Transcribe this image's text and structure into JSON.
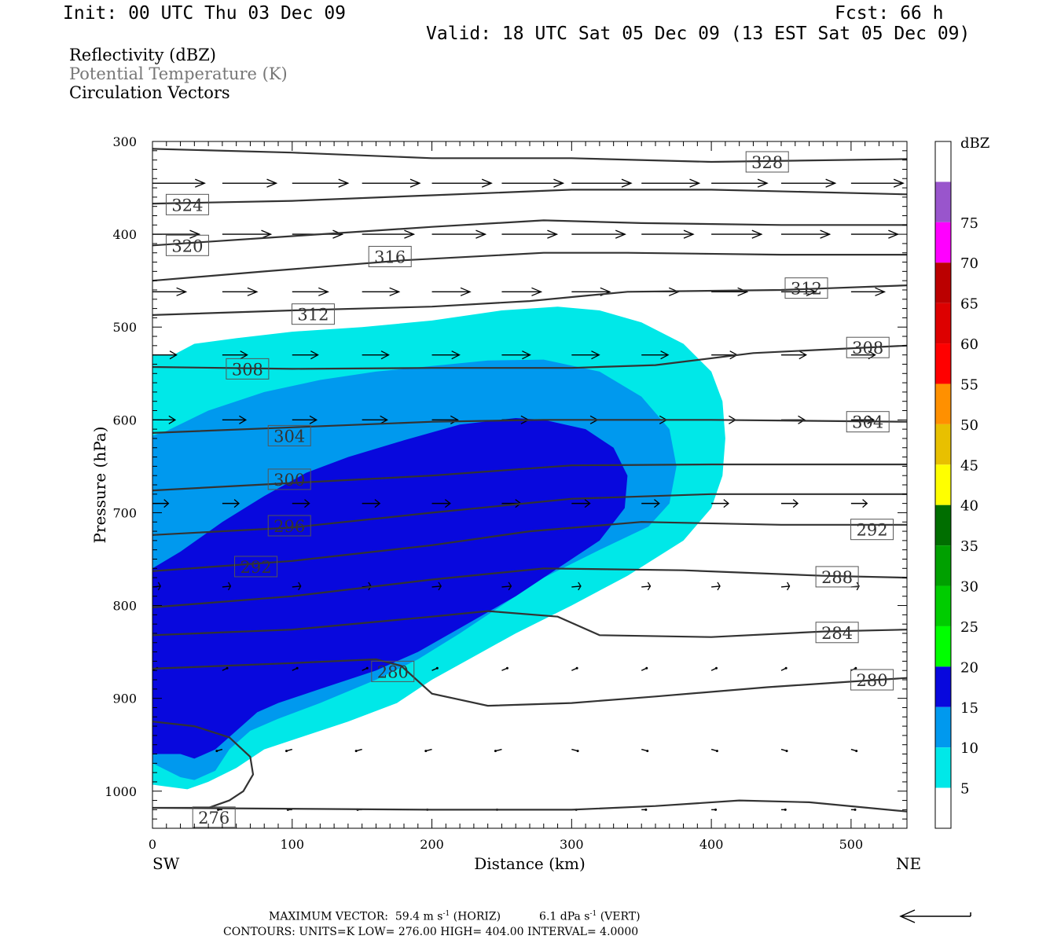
{
  "header": {
    "init": "Init: 00 UTC Thu 03 Dec 09",
    "fcst": "Fcst:   66 h",
    "valid": "Valid: 18 UTC Sat 05 Dec 09 (13 EST Sat 05 Dec 09)"
  },
  "fields": [
    "Reflectivity (dBZ)",
    "Potential Temperature (K)",
    "Circulation Vectors"
  ],
  "footer": {
    "max_vector_label": "MAXIMUM VECTOR:",
    "max_vector_horiz": "59.4 m s",
    "horiz_suffix": " (HORIZ)",
    "max_vector_vert": "6.1 dPa s",
    "vert_suffix": " (VERT)",
    "exponent": "-1",
    "contours": "CONTOURS:  UNITS=K   LOW=  276.00        HIGH=  404.00        INTERVAL=    4.0000"
  },
  "colors": {
    "dbz_5": "#00e8e8",
    "dbz_10": "#0099ee",
    "dbz_15": "#0808dd",
    "contour": "#333333"
  },
  "chart_data": {
    "type": "heatmap",
    "xlabel": "Distance (km)",
    "ylabel": "Pressure (hPa)",
    "xlim": [
      0,
      540
    ],
    "ylim": [
      1040,
      300
    ],
    "x_ticks": [
      0,
      100,
      200,
      300,
      400,
      500
    ],
    "y_ticks": [
      300,
      400,
      500,
      600,
      700,
      800,
      900,
      1000
    ],
    "x_end_labels": {
      "left": "SW",
      "right": "NE"
    },
    "colorbar": {
      "title": "dBZ",
      "levels": [
        5,
        10,
        15,
        20,
        25,
        30,
        35,
        40,
        45,
        50,
        55,
        60,
        65,
        70,
        75
      ],
      "colors": [
        "#ffffff",
        "#00e8e8",
        "#0099ee",
        "#0808dd",
        "#00ff00",
        "#00cc00",
        "#00a000",
        "#006e00",
        "#ffff00",
        "#e8c000",
        "#ff9000",
        "#ff0000",
        "#dd0000",
        "#bb0000",
        "#ff00ff",
        "#9955cc",
        "#ffffff"
      ]
    },
    "reflectivity": [
      {
        "dbz": 5,
        "polygon": [
          [
            0,
            530
          ],
          [
            15,
            530
          ],
          [
            30,
            518
          ],
          [
            60,
            512
          ],
          [
            100,
            505
          ],
          [
            150,
            500
          ],
          [
            200,
            493
          ],
          [
            250,
            482
          ],
          [
            290,
            478
          ],
          [
            320,
            482
          ],
          [
            350,
            495
          ],
          [
            380,
            518
          ],
          [
            400,
            548
          ],
          [
            408,
            580
          ],
          [
            410,
            620
          ],
          [
            408,
            660
          ],
          [
            400,
            695
          ],
          [
            380,
            730
          ],
          [
            340,
            768
          ],
          [
            300,
            800
          ],
          [
            260,
            830
          ],
          [
            230,
            855
          ],
          [
            200,
            880
          ],
          [
            175,
            905
          ],
          [
            140,
            925
          ],
          [
            110,
            940
          ],
          [
            80,
            955
          ],
          [
            60,
            975
          ],
          [
            40,
            990
          ],
          [
            25,
            998
          ],
          [
            10,
            995
          ],
          [
            0,
            993
          ]
        ]
      },
      {
        "dbz": 10,
        "polygon": [
          [
            0,
            617
          ],
          [
            10,
            612
          ],
          [
            40,
            590
          ],
          [
            80,
            570
          ],
          [
            120,
            557
          ],
          [
            160,
            548
          ],
          [
            200,
            542
          ],
          [
            240,
            536
          ],
          [
            280,
            535
          ],
          [
            320,
            548
          ],
          [
            350,
            575
          ],
          [
            370,
            610
          ],
          [
            375,
            650
          ],
          [
            370,
            690
          ],
          [
            355,
            715
          ],
          [
            320,
            740
          ],
          [
            280,
            770
          ],
          [
            250,
            800
          ],
          [
            220,
            830
          ],
          [
            190,
            858
          ],
          [
            160,
            880
          ],
          [
            120,
            905
          ],
          [
            90,
            922
          ],
          [
            70,
            935
          ],
          [
            55,
            955
          ],
          [
            45,
            978
          ],
          [
            30,
            988
          ],
          [
            20,
            985
          ],
          [
            0,
            970
          ]
        ]
      },
      {
        "dbz": 15,
        "polygon": [
          [
            0,
            760
          ],
          [
            20,
            742
          ],
          [
            50,
            710
          ],
          [
            80,
            682
          ],
          [
            110,
            657
          ],
          [
            140,
            640
          ],
          [
            180,
            622
          ],
          [
            220,
            605
          ],
          [
            260,
            598
          ],
          [
            280,
            600
          ],
          [
            310,
            610
          ],
          [
            330,
            630
          ],
          [
            340,
            660
          ],
          [
            338,
            695
          ],
          [
            320,
            730
          ],
          [
            290,
            760
          ],
          [
            260,
            790
          ],
          [
            225,
            820
          ],
          [
            190,
            850
          ],
          [
            160,
            870
          ],
          [
            120,
            890
          ],
          [
            90,
            905
          ],
          [
            75,
            915
          ],
          [
            60,
            935
          ],
          [
            45,
            955
          ],
          [
            30,
            965
          ],
          [
            20,
            960
          ],
          [
            0,
            960
          ]
        ]
      }
    ],
    "isotherms": [
      {
        "label": "328",
        "label_x": 440,
        "label_p": 322,
        "points": [
          [
            0,
            308
          ],
          [
            100,
            312
          ],
          [
            200,
            318
          ],
          [
            300,
            318
          ],
          [
            400,
            322
          ],
          [
            540,
            319
          ]
        ]
      },
      {
        "label": "324",
        "label_x": 25,
        "label_p": 368,
        "points": [
          [
            0,
            367
          ],
          [
            100,
            364
          ],
          [
            200,
            358
          ],
          [
            300,
            352
          ],
          [
            400,
            352
          ],
          [
            540,
            357
          ]
        ]
      },
      {
        "label": "320",
        "label_x": 25,
        "label_p": 412,
        "points": [
          [
            0,
            412
          ],
          [
            100,
            402
          ],
          [
            200,
            392
          ],
          [
            280,
            385
          ],
          [
            350,
            388
          ],
          [
            450,
            390
          ],
          [
            540,
            390
          ]
        ]
      },
      {
        "label": "316",
        "label_x": 170,
        "label_p": 424,
        "points": [
          [
            0,
            450
          ],
          [
            80,
            440
          ],
          [
            180,
            428
          ],
          [
            280,
            420
          ],
          [
            340,
            420
          ],
          [
            450,
            422
          ],
          [
            540,
            422
          ]
        ]
      },
      {
        "label": "312",
        "label_x": 115,
        "label_p": 486,
        "points": [
          [
            0,
            487
          ],
          [
            100,
            482
          ],
          [
            200,
            478
          ],
          [
            270,
            472
          ],
          [
            340,
            462
          ],
          [
            450,
            460
          ],
          [
            540,
            455
          ]
        ]
      },
      {
        "label": "312",
        "label_x": 468,
        "label_p": 458,
        "points": []
      },
      {
        "label": "308",
        "label_x": 68,
        "label_p": 545,
        "points": [
          [
            0,
            543
          ],
          [
            100,
            545
          ],
          [
            200,
            544
          ],
          [
            300,
            544
          ],
          [
            360,
            541
          ],
          [
            430,
            528
          ],
          [
            540,
            520
          ]
        ]
      },
      {
        "label": "308",
        "label_x": 512,
        "label_p": 522,
        "points": []
      },
      {
        "label": "304",
        "label_x": 98,
        "label_p": 617,
        "points": [
          [
            0,
            614
          ],
          [
            100,
            608
          ],
          [
            200,
            602
          ],
          [
            280,
            600
          ],
          [
            400,
            600
          ],
          [
            540,
            602
          ]
        ]
      },
      {
        "label": "304",
        "label_x": 512,
        "label_p": 602,
        "points": []
      },
      {
        "label": "300",
        "label_x": 98,
        "label_p": 664,
        "points": [
          [
            0,
            676
          ],
          [
            100,
            668
          ],
          [
            200,
            660
          ],
          [
            300,
            649
          ],
          [
            400,
            648
          ],
          [
            540,
            648
          ]
        ]
      },
      {
        "label": "296",
        "label_x": 98,
        "label_p": 714,
        "points": [
          [
            0,
            724
          ],
          [
            100,
            716
          ],
          [
            200,
            700
          ],
          [
            300,
            685
          ],
          [
            400,
            680
          ],
          [
            540,
            680
          ]
        ]
      },
      {
        "label": "292",
        "label_x": 74,
        "label_p": 758,
        "points": [
          [
            0,
            763
          ],
          [
            100,
            752
          ],
          [
            200,
            735
          ],
          [
            270,
            720
          ],
          [
            350,
            710
          ],
          [
            450,
            713
          ],
          [
            540,
            713
          ]
        ]
      },
      {
        "label": "292",
        "label_x": 515,
        "label_p": 718,
        "points": []
      },
      {
        "label": "288",
        "label_x": 490,
        "label_p": 769,
        "points": [
          [
            0,
            802
          ],
          [
            100,
            790
          ],
          [
            200,
            772
          ],
          [
            280,
            760
          ],
          [
            380,
            762
          ],
          [
            480,
            768
          ],
          [
            540,
            770
          ]
        ]
      },
      {
        "label": "284",
        "label_x": 490,
        "label_p": 829,
        "points": [
          [
            0,
            832
          ],
          [
            100,
            826
          ],
          [
            200,
            812
          ],
          [
            240,
            806
          ],
          [
            290,
            812
          ],
          [
            320,
            832
          ],
          [
            400,
            834
          ],
          [
            480,
            828
          ],
          [
            540,
            826
          ]
        ]
      },
      {
        "label": "280",
        "label_x": 172,
        "label_p": 871,
        "points": [
          [
            0,
            868
          ],
          [
            100,
            862
          ],
          [
            160,
            858
          ],
          [
            178,
            865
          ],
          [
            200,
            895
          ],
          [
            240,
            908
          ],
          [
            300,
            905
          ],
          [
            360,
            898
          ],
          [
            440,
            888
          ],
          [
            500,
            882
          ],
          [
            540,
            878
          ]
        ]
      },
      {
        "label": "280",
        "label_x": 515,
        "label_p": 880,
        "points": []
      },
      {
        "label": "276",
        "label_x": 44,
        "label_p": 1028,
        "points": [
          [
            0,
            925
          ],
          [
            30,
            930
          ],
          [
            55,
            942
          ],
          [
            70,
            963
          ],
          [
            72,
            982
          ],
          [
            65,
            1000
          ],
          [
            55,
            1010
          ],
          [
            40,
            1018
          ],
          [
            0,
            1018
          ],
          [
            200,
            1020
          ],
          [
            300,
            1020
          ],
          [
            360,
            1016
          ],
          [
            420,
            1010
          ],
          [
            470,
            1012
          ],
          [
            540,
            1022
          ]
        ]
      }
    ],
    "vectors_note": "circulation vectors shown as arrows; strong westerly aloft weakening toward surface",
    "reference_vector": "left-pointing arrow beside footer"
  }
}
